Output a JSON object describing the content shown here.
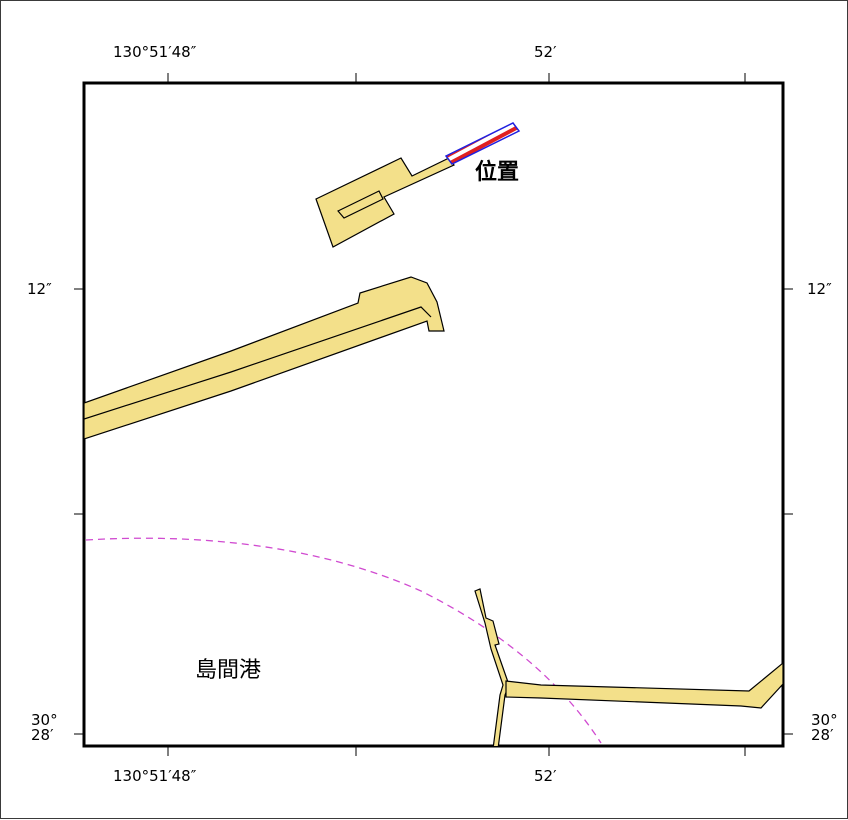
{
  "map": {
    "colors": {
      "land": "#f3e08a",
      "outline": "#000000",
      "boundary_dashed": "#d04ad0",
      "marker_red": "#e02020",
      "marker_blue": "#2020e0",
      "background": "#ffffff"
    },
    "labels": {
      "position": "位置",
      "harbor": "島間港"
    },
    "coords": {
      "top_left": "130°51′48″",
      "top_right": "52′",
      "bottom_left": "130°51′48″",
      "bottom_right": "52′",
      "left_upper": "12″",
      "right_upper": "12″",
      "left_lower_deg": "30°",
      "left_lower_min": "28′",
      "right_lower_deg": "30°",
      "right_lower_min": "28′"
    }
  }
}
